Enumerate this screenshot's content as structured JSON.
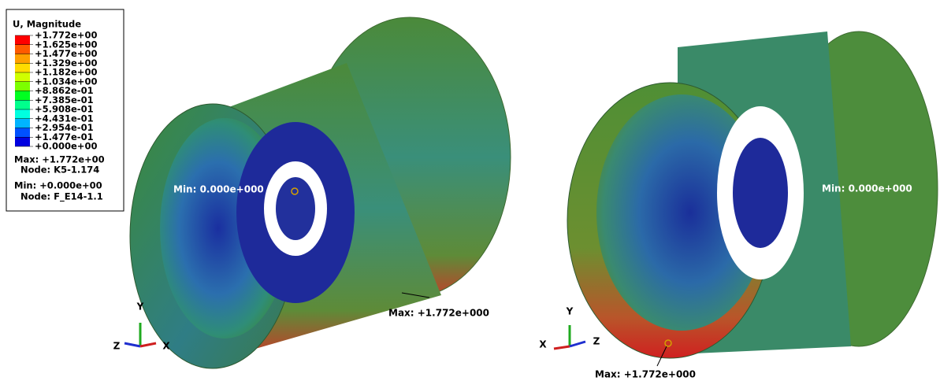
{
  "legend": {
    "title": "U, Magnitude",
    "labels": [
      "+1.772e+00",
      "+1.625e+00",
      "+1.477e+00",
      "+1.329e+00",
      "+1.182e+00",
      "+1.034e+00",
      "+8.862e-01",
      "+7.385e-01",
      "+5.908e-01",
      "+4.431e-01",
      "+2.954e-01",
      "+1.477e-01",
      "+0.000e+00"
    ],
    "max": "Max: +1.772e+00",
    "max_node": "Node: K5-1.174",
    "min": "Min: +0.000e+00",
    "min_node": "Node: F_E14-1.1"
  },
  "views": [
    {
      "min_label": "Min: 0.000e+000",
      "max_label": "Max: +1.772e+000",
      "triad": {
        "up": "Y",
        "left": "Z",
        "right": "X"
      }
    },
    {
      "min_label": "Min: 0.000e+000",
      "max_label": "Max: +1.772e+000",
      "triad": {
        "up": "Y",
        "left": "X",
        "right": "Z"
      }
    }
  ]
}
